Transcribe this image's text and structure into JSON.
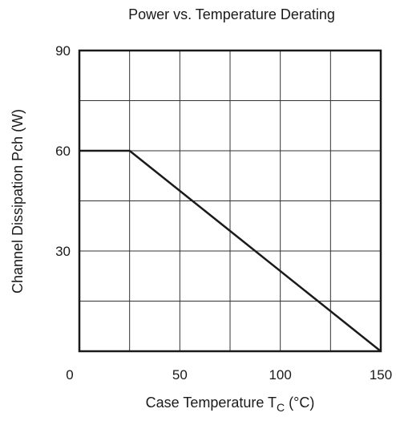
{
  "chart_data": {
    "type": "line",
    "title": "Power vs. Temperature Derating",
    "xlabel": {
      "prefix": "Case Temperature  T",
      "subscript": "C",
      "suffix": "  (°C)"
    },
    "ylabel": "Channel Dissipation  Pch  (W)",
    "xlim": [
      0,
      150
    ],
    "ylim": [
      0,
      90
    ],
    "x_ticks": [
      0,
      50,
      100,
      150
    ],
    "x_tick_labels": [
      "0",
      "50",
      "100",
      "150"
    ],
    "y_ticks": [
      30,
      60,
      90
    ],
    "y_tick_labels": [
      "30",
      "60",
      "90"
    ],
    "grid": true,
    "x_grid_step": 25,
    "y_grid_step": 15,
    "series": [
      {
        "x": [
          0,
          25,
          150
        ],
        "y": [
          60,
          60,
          0
        ],
        "color": "#1a1a1a"
      }
    ]
  }
}
